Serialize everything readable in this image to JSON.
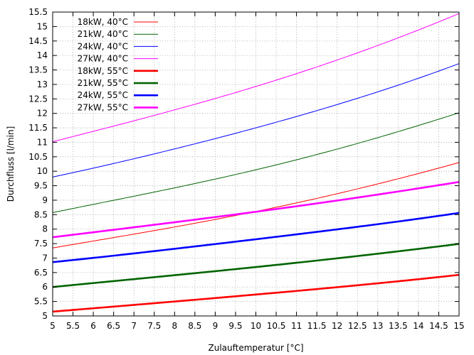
{
  "chart_data": {
    "type": "line",
    "xlabel": "Zulauftemperatur [°C]",
    "ylabel": "Durchfluss [l/min]",
    "xlim": [
      5,
      15
    ],
    "ylim": [
      5,
      15.5
    ],
    "x_ticks": [
      "5",
      "5.5",
      "6",
      "6.5",
      "7",
      "7.5",
      "8",
      "8.5",
      "9",
      "9.5",
      "10",
      "10.5",
      "11",
      "11.5",
      "12",
      "12.5",
      "13",
      "13.5",
      "14",
      "14.5",
      "15"
    ],
    "y_ticks": [
      "5",
      "5.5",
      "6",
      "6.5",
      "7",
      "7.5",
      "8",
      "8.5",
      "9",
      "9.5",
      "10",
      "10.5",
      "11",
      "11.5",
      "12",
      "12.5",
      "13",
      "13.5",
      "14",
      "14.5",
      "15",
      "15.5"
    ],
    "grid": true,
    "legend_position": "top-left",
    "x": [
      5,
      7.5,
      10,
      12.5,
      15
    ],
    "series": [
      {
        "name": "18kW, 40°C",
        "color": "#ff0000",
        "width": "thin",
        "values": [
          7.35,
          7.95,
          8.61,
          9.39,
          10.3
        ]
      },
      {
        "name": "21kW, 40°C",
        "color": "#006400",
        "width": "thin",
        "values": [
          8.57,
          9.28,
          10.05,
          10.96,
          12.02
        ]
      },
      {
        "name": "24kW, 40°C",
        "color": "#0000ff",
        "width": "thin",
        "values": [
          9.8,
          10.6,
          11.5,
          12.52,
          13.72
        ]
      },
      {
        "name": "27kW, 40°C",
        "color": "#ff00ff",
        "width": "thin",
        "values": [
          11.02,
          11.93,
          12.93,
          14.09,
          15.45
        ]
      },
      {
        "name": "18kW, 55°C",
        "color": "#ff0000",
        "width": "thick",
        "values": [
          5.15,
          5.44,
          5.74,
          6.06,
          6.42
        ]
      },
      {
        "name": "21kW, 55°C",
        "color": "#006400",
        "width": "thick",
        "values": [
          6.0,
          6.34,
          6.69,
          7.07,
          7.49
        ]
      },
      {
        "name": "24kW, 55°C",
        "color": "#0000ff",
        "width": "thick",
        "values": [
          6.86,
          7.24,
          7.65,
          8.08,
          8.56
        ]
      },
      {
        "name": "27kW, 55°C",
        "color": "#ff00ff",
        "width": "thick",
        "values": [
          7.72,
          8.15,
          8.6,
          9.09,
          9.63
        ]
      }
    ]
  }
}
